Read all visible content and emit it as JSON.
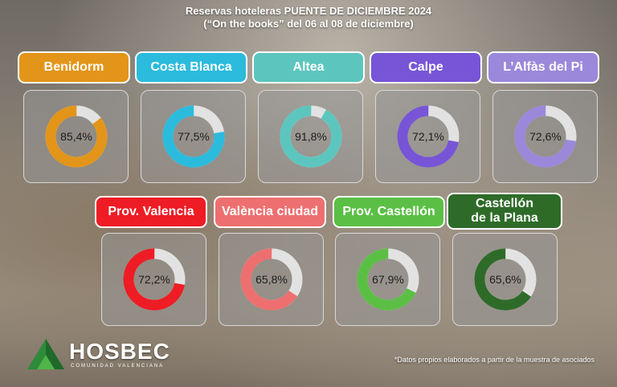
{
  "title": {
    "line1": "Reservas hoteleras PUENTE DE DICIEMBRE 2024",
    "line2": "(“On the books” del 06 al 08 de diciembre)"
  },
  "chart_data": [
    {
      "type": "pie",
      "title": "Benidorm",
      "values": [
        85.4
      ],
      "unit": "%",
      "color": "#E3951A"
    },
    {
      "type": "pie",
      "title": "Costa Blanca",
      "values": [
        77.5
      ],
      "unit": "%",
      "color": "#2BBBDD"
    },
    {
      "type": "pie",
      "title": "Altea",
      "values": [
        91.8
      ],
      "unit": "%",
      "color": "#5CC6BE"
    },
    {
      "type": "pie",
      "title": "Calpe",
      "values": [
        72.1
      ],
      "unit": "%",
      "color": "#7755D6"
    },
    {
      "type": "pie",
      "title": "L’Alfàs del Pi",
      "values": [
        72.6
      ],
      "unit": "%",
      "color": "#9B88DA"
    },
    {
      "type": "pie",
      "title": "Prov. Valencia",
      "values": [
        72.2
      ],
      "unit": "%",
      "color": "#EE1C24"
    },
    {
      "type": "pie",
      "title": "València ciudad",
      "values": [
        65.8
      ],
      "unit": "%",
      "color": "#EE6F6F"
    },
    {
      "type": "pie",
      "title": "Prov. Castellón",
      "values": [
        67.9
      ],
      "unit": "%",
      "color": "#5BBF45"
    },
    {
      "type": "pie",
      "title": "Castellón de la Plana",
      "values": [
        65.6
      ],
      "unit": "%",
      "color": "#2E6B28"
    }
  ],
  "labels": {
    "benidorm": "Benidorm",
    "costa_blanca": "Costa Blanca",
    "altea": "Altea",
    "calpe": "Calpe",
    "alfas": "L’Alfàs del Pi",
    "prov_valencia": "Prov. Valencia",
    "valencia_ciudad": "València ciudad",
    "prov_castellon": "Prov. Castellón",
    "castellon_plana_1": "Castellón",
    "castellon_plana_2": "de la Plana"
  },
  "pct": {
    "benidorm": "85,4%",
    "costa_blanca": "77,5%",
    "altea": "91,8%",
    "calpe": "72,1%",
    "alfas": "72,6%",
    "prov_valencia": "72,2%",
    "valencia_ciudad": "65,8%",
    "prov_castellon": "67,9%",
    "castellon_plana": "65,6%"
  },
  "colors": {
    "remainder": "#E2E2E2"
  },
  "footnote": "*Datos propios elaborados a partir de la muestra de asociados",
  "logo": {
    "name": "HOSBEC",
    "tagline": "COMUNIDAD VALENCIANA"
  }
}
